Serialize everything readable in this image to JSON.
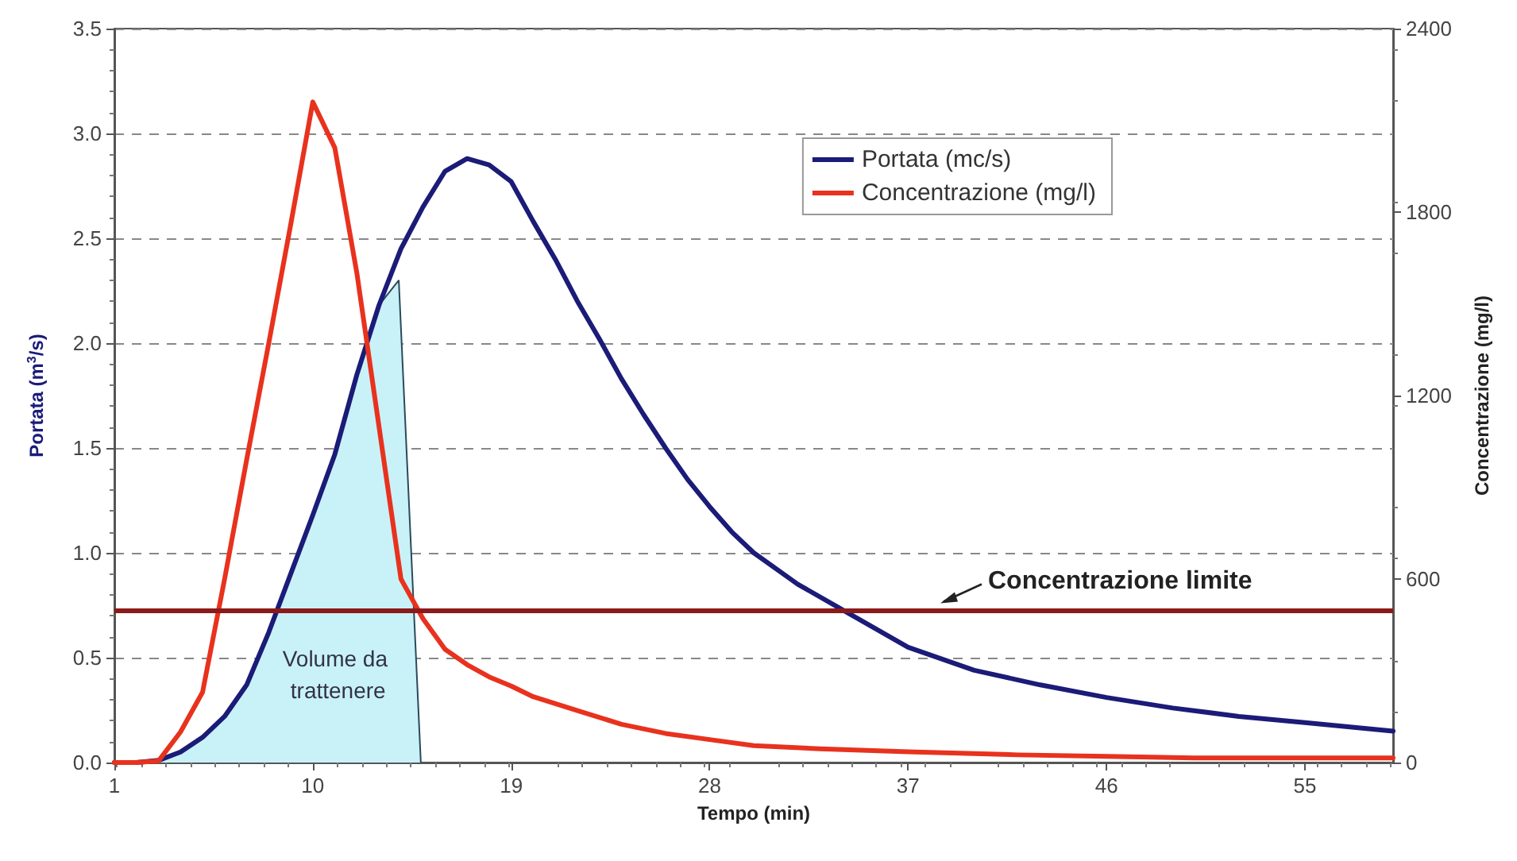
{
  "chart_data": {
    "type": "line",
    "xlabel": "Tempo (min)",
    "ylabel": "Portata (m$^{3}$/s)",
    "y2label": "Concentrazione (mg/l)",
    "xlim": [
      1,
      59
    ],
    "xticks": [
      1,
      10,
      19,
      28,
      37,
      46,
      55
    ],
    "ylim": [
      0,
      3.5
    ],
    "yticks": [
      {
        "value": 0,
        "label": "0.0"
      },
      {
        "value": 0.5,
        "label": "0.5"
      },
      {
        "value": 1,
        "label": "1.0"
      },
      {
        "value": 1.5,
        "label": "1.5"
      },
      {
        "value": 2,
        "label": "2.0"
      },
      {
        "value": 2.5,
        "label": "2.5"
      },
      {
        "value": 3,
        "label": "3.0"
      },
      {
        "value": 3.5,
        "label": "3.5"
      }
    ],
    "y2lim": [
      0,
      2400
    ],
    "y2ticks": [
      0,
      600,
      1200,
      1800,
      2400
    ],
    "grid": "y",
    "legend": "top right",
    "marker": "none",
    "line_style": "solid",
    "series": [
      {
        "type": "area",
        "color": "#c8f2f8",
        "x": [
          1,
          2,
          3,
          4,
          5,
          6,
          7,
          8,
          9,
          10,
          11,
          12,
          13,
          13.9,
          14.9
        ],
        "values": [
          0,
          0,
          0.01,
          0.05,
          0.12,
          0.22,
          0.37,
          0.62,
          0.9,
          1.18,
          1.47,
          1.85,
          2.18,
          2.3,
          0
        ]
      },
      {
        "name": "Portata (mc/s)",
        "color": "#1b1b78",
        "x": [
          1,
          2,
          3,
          4,
          5,
          6,
          7,
          8,
          9,
          10,
          11,
          12,
          13,
          14,
          15,
          16,
          17,
          18,
          19,
          20,
          21,
          22,
          23,
          24,
          25,
          26,
          27,
          28,
          29,
          30,
          32,
          34,
          37,
          40,
          43,
          46,
          49,
          52,
          55,
          59
        ],
        "values": [
          0,
          0,
          0.01,
          0.05,
          0.12,
          0.22,
          0.37,
          0.62,
          0.9,
          1.18,
          1.47,
          1.85,
          2.18,
          2.45,
          2.65,
          2.82,
          2.88,
          2.85,
          2.77,
          2.58,
          2.4,
          2.2,
          2.02,
          1.83,
          1.66,
          1.5,
          1.35,
          1.22,
          1.1,
          1.0,
          0.85,
          0.73,
          0.55,
          0.44,
          0.37,
          0.31,
          0.26,
          0.22,
          0.19,
          0.15
        ]
      },
      {
        "name": "Concentrazione (mg/l)",
        "color": "#e8321e",
        "axis": "y2",
        "x": [
          1,
          2,
          3,
          4,
          5,
          6,
          7,
          8,
          9,
          10,
          11,
          12,
          13,
          14,
          15,
          16,
          17,
          18,
          19,
          20,
          22,
          24,
          26,
          28,
          30,
          33,
          37,
          42,
          46,
          50,
          55,
          59
        ],
        "values": [
          0,
          0,
          5,
          100,
          230,
          600,
          990,
          1370,
          1760,
          2160,
          2010,
          1600,
          1100,
          600,
          470,
          370,
          320,
          280,
          250,
          215,
          170,
          125,
          95,
          75,
          55,
          45,
          35,
          25,
          20,
          15,
          15,
          15
        ]
      }
    ],
    "ref_lines": [
      {
        "axis": "y2",
        "value": 500,
        "label": "Concentrazione limite",
        "color": "#8b1a1a"
      }
    ],
    "annotations": [
      "Volume da trattenere"
    ]
  }
}
